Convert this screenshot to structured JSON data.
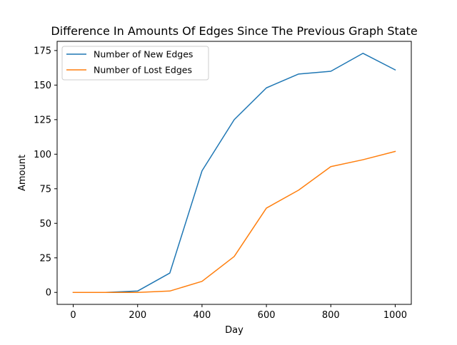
{
  "chart_data": {
    "type": "line",
    "title": "Difference In Amounts Of Edges Since The Previous Graph State",
    "xlabel": "Day",
    "ylabel": "Amount",
    "x": [
      0,
      100,
      200,
      300,
      400,
      500,
      600,
      700,
      800,
      900,
      1000
    ],
    "series": [
      {
        "name": "Number of New Edges",
        "color": "#1f77b4",
        "values": [
          0,
          0,
          1,
          14,
          88,
          125,
          148,
          158,
          160,
          173,
          161
        ]
      },
      {
        "name": "Number of Lost Edges",
        "color": "#ff7f0e",
        "values": [
          0,
          0,
          0,
          1,
          8,
          26,
          61,
          74,
          91,
          96,
          102
        ]
      }
    ],
    "xlim": [
      -50,
      1050
    ],
    "ylim": [
      -8.65,
      181.65
    ],
    "xticks": [
      0,
      200,
      400,
      600,
      800,
      1000
    ],
    "yticks": [
      0,
      25,
      50,
      75,
      100,
      125,
      150,
      175
    ],
    "grid": false,
    "legend_position": "top-left"
  }
}
